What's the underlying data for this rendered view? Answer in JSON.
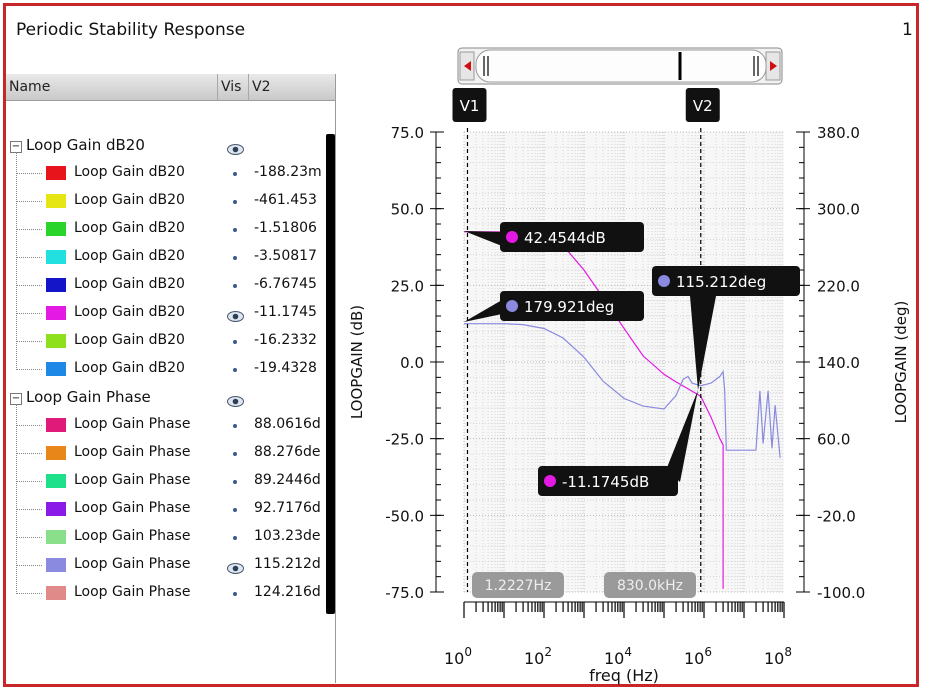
{
  "window": {
    "title": "Periodic Stability Response",
    "page_number": "1"
  },
  "browser": {
    "columns": {
      "name": "Name",
      "vis": "Vis",
      "v2": "V2"
    },
    "groups": [
      {
        "label": "Loop Gain dB20",
        "visible": true,
        "rows": [
          {
            "label": "Loop Gain dB20",
            "color": "#e8141c",
            "value": "-188.23m",
            "visible_icon": "dot"
          },
          {
            "label": "Loop Gain dB20",
            "color": "#e6e614",
            "value": "-461.453",
            "visible_icon": "dot"
          },
          {
            "label": "Loop Gain dB20",
            "color": "#2ad42a",
            "value": "-1.51806",
            "visible_icon": "dot"
          },
          {
            "label": "Loop Gain dB20",
            "color": "#22e0e0",
            "value": "-3.50817",
            "visible_icon": "dot"
          },
          {
            "label": "Loop Gain dB20",
            "color": "#1414c8",
            "value": "-6.76745",
            "visible_icon": "dot"
          },
          {
            "label": "Loop Gain dB20",
            "color": "#e41ae4",
            "value": "-11.1745",
            "visible_icon": "eye"
          },
          {
            "label": "Loop Gain dB20",
            "color": "#8ee01c",
            "value": "-16.2332",
            "visible_icon": "dot"
          },
          {
            "label": "Loop Gain dB20",
            "color": "#1e88e6",
            "value": "-19.4328",
            "visible_icon": "dot"
          }
        ]
      },
      {
        "label": "Loop Gain Phase",
        "visible": true,
        "rows": [
          {
            "label": "Loop Gain Phase",
            "color": "#e01a78",
            "value": "88.0616d",
            "visible_icon": "dot"
          },
          {
            "label": "Loop Gain Phase",
            "color": "#e8861a",
            "value": "88.276de",
            "visible_icon": "dot"
          },
          {
            "label": "Loop Gain Phase",
            "color": "#1ee08a",
            "value": "89.2446d",
            "visible_icon": "dot"
          },
          {
            "label": "Loop Gain Phase",
            "color": "#8a1ae8",
            "value": "92.7176d",
            "visible_icon": "dot"
          },
          {
            "label": "Loop Gain Phase",
            "color": "#8ae08a",
            "value": "103.23de",
            "visible_icon": "dot"
          },
          {
            "label": "Loop Gain Phase",
            "color": "#8a8ae0",
            "value": "115.212d",
            "visible_icon": "eye"
          },
          {
            "label": "Loop Gain Phase",
            "color": "#e08a8a",
            "value": "124.216d",
            "visible_icon": "dot"
          }
        ]
      }
    ]
  },
  "plot": {
    "cursors": [
      {
        "label": "V1"
      },
      {
        "label": "V2"
      }
    ],
    "markers": [
      {
        "text": "42.4544dB",
        "color": "#e41ae4"
      },
      {
        "text": "179.921deg",
        "color": "#8a8ae0"
      },
      {
        "text": "115.212deg",
        "color": "#8a8ae0"
      },
      {
        "text": "-11.1745dB",
        "color": "#e41ae4"
      }
    ],
    "cursor_readouts": [
      "1.2227Hz",
      "830.0kHz"
    ]
  },
  "chart_data": {
    "type": "line",
    "xlabel": "freq (Hz)",
    "ylabel": "LOOPGAIN (dB)",
    "y2label": "LOOPGAIN (deg)",
    "x_scale": "log",
    "xlim": [
      1,
      100000000
    ],
    "ylim": [
      -75,
      75
    ],
    "y2lim": [
      -100,
      380
    ],
    "x_ticks": [
      {
        "base": "10",
        "exp": "0"
      },
      {
        "base": "10",
        "exp": "2"
      },
      {
        "base": "10",
        "exp": "4"
      },
      {
        "base": "10",
        "exp": "6"
      },
      {
        "base": "10",
        "exp": "8"
      }
    ],
    "y_ticks": [
      "75.0",
      "50.0",
      "25.0",
      "0.0",
      "-25.0",
      "-50.0",
      "-75.0"
    ],
    "y2_ticks": [
      "380.0",
      "300.0",
      "220.0",
      "140.0",
      "60.0",
      "-20.0",
      "-100.0"
    ],
    "grid": true,
    "cursor_x": [
      1.2227,
      830000
    ],
    "series": [
      {
        "axis": "left",
        "color": "#e41ae4",
        "points": [
          [
            1,
            42.45
          ],
          [
            3,
            42.45
          ],
          [
            10,
            42.43
          ],
          [
            30,
            42.3
          ],
          [
            100,
            41.5
          ],
          [
            300,
            38
          ],
          [
            1000,
            30
          ],
          [
            3000,
            21
          ],
          [
            10000,
            11
          ],
          [
            30000,
            2
          ],
          [
            100000,
            -4
          ],
          [
            200000,
            -6.5
          ],
          [
            500000,
            -9.5
          ],
          [
            830000,
            -11.17
          ],
          [
            1500000,
            -18
          ],
          [
            2500000,
            -25
          ],
          [
            3000000,
            -27
          ]
        ]
      },
      {
        "axis": "left",
        "color": "#e41ae4",
        "points": [
          [
            3000000,
            -27
          ],
          [
            3000000,
            -74
          ]
        ]
      },
      {
        "axis": "right",
        "color": "#8a8ae0",
        "points": [
          [
            1,
            180
          ],
          [
            10,
            180
          ],
          [
            30,
            179
          ],
          [
            100,
            175
          ],
          [
            300,
            165
          ],
          [
            1000,
            145
          ],
          [
            3000,
            120
          ],
          [
            10000,
            102
          ],
          [
            30000,
            94
          ],
          [
            100000,
            91
          ],
          [
            200000,
            105
          ],
          [
            300000,
            122
          ],
          [
            400000,
            125
          ],
          [
            500000,
            118
          ],
          [
            830000,
            115.21
          ],
          [
            1500000,
            118
          ],
          [
            2500000,
            125
          ],
          [
            3000000,
            130
          ],
          [
            3300000,
            110
          ],
          [
            3600000,
            48
          ],
          [
            4000000,
            48
          ],
          [
            10000000,
            48
          ],
          [
            20000000,
            48
          ],
          [
            25000000,
            110
          ],
          [
            30000000,
            55
          ],
          [
            40000000,
            110
          ],
          [
            50000000,
            50
          ],
          [
            60000000,
            95
          ],
          [
            80000000,
            40
          ]
        ]
      }
    ]
  }
}
